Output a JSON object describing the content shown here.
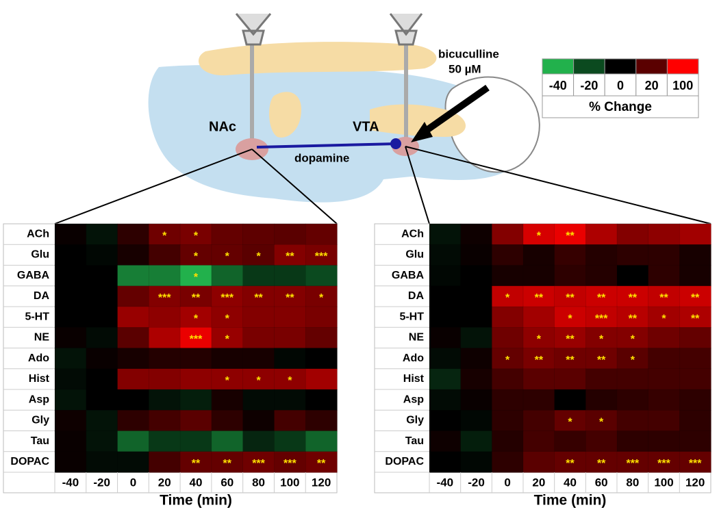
{
  "diagram": {
    "labels": [
      "NAc",
      "VTA",
      "dopamine",
      "bicuculline",
      "50 µM"
    ]
  },
  "legend": {
    "ticks": [
      -40,
      -20,
      0,
      20,
      100
    ],
    "colors": [
      "#22b14c",
      "#0b4a1f",
      "#000000",
      "#5a0000",
      "#ff0000"
    ],
    "title": "% Change"
  },
  "chart_data": [
    {
      "type": "heatmap",
      "xlabel": "Time (min)",
      "x": [
        -40,
        -20,
        0,
        20,
        40,
        60,
        80,
        100,
        120
      ],
      "rows": [
        "ACh",
        "Glu",
        "GABA",
        "DA",
        "5-HT",
        "NE",
        "Ado",
        "Hist",
        "Asp",
        "Gly",
        "Tau",
        "DOPAC"
      ],
      "values": [
        [
          2,
          -5,
          10,
          30,
          35,
          25,
          22,
          20,
          25
        ],
        [
          0,
          -2,
          5,
          15,
          25,
          25,
          20,
          40,
          35
        ],
        [
          0,
          0,
          -30,
          -30,
          -40,
          -25,
          -15,
          -15,
          -20
        ],
        [
          0,
          0,
          25,
          40,
          35,
          45,
          40,
          40,
          35
        ],
        [
          0,
          0,
          50,
          45,
          55,
          45,
          40,
          40,
          35
        ],
        [
          2,
          -3,
          20,
          60,
          90,
          50,
          35,
          35,
          25
        ],
        [
          -5,
          2,
          5,
          8,
          8,
          5,
          5,
          -2,
          0
        ],
        [
          -3,
          0,
          40,
          40,
          45,
          45,
          45,
          45,
          55
        ],
        [
          -5,
          0,
          0,
          -5,
          -8,
          5,
          -3,
          -3,
          0
        ],
        [
          3,
          -5,
          10,
          15,
          20,
          10,
          3,
          15,
          10
        ],
        [
          2,
          -5,
          -25,
          -15,
          -15,
          -25,
          -10,
          -15,
          -25
        ],
        [
          2,
          -3,
          -3,
          15,
          25,
          25,
          30,
          25,
          30
        ]
      ],
      "stars": [
        [
          null,
          null,
          null,
          "*",
          "*",
          null,
          null,
          null,
          null
        ],
        [
          null,
          null,
          null,
          null,
          "*",
          "*",
          "*",
          "**",
          "***"
        ],
        [
          null,
          null,
          null,
          null,
          "*",
          null,
          null,
          null,
          null
        ],
        [
          null,
          null,
          null,
          "***",
          "**",
          "***",
          "**",
          "**",
          "*"
        ],
        [
          null,
          null,
          null,
          null,
          "*",
          "*",
          null,
          null,
          null
        ],
        [
          null,
          null,
          null,
          null,
          "***",
          "*",
          null,
          null,
          null
        ],
        [
          null,
          null,
          null,
          null,
          null,
          null,
          null,
          null,
          null
        ],
        [
          null,
          null,
          null,
          null,
          null,
          "*",
          "*",
          "*",
          null
        ],
        [
          null,
          null,
          null,
          null,
          null,
          null,
          null,
          null,
          null
        ],
        [
          null,
          null,
          null,
          null,
          null,
          null,
          null,
          null,
          null
        ],
        [
          null,
          null,
          null,
          null,
          null,
          null,
          null,
          null,
          null
        ],
        [
          null,
          null,
          null,
          null,
          "**",
          "**",
          "***",
          "***",
          "**"
        ]
      ]
    },
    {
      "type": "heatmap",
      "xlabel": "Time (min)",
      "x": [
        -40,
        -20,
        0,
        20,
        40,
        60,
        80,
        100,
        120
      ],
      "rows": [
        "ACh",
        "Glu",
        "GABA",
        "DA",
        "5-HT",
        "NE",
        "Ado",
        "Hist",
        "Asp",
        "Gly",
        "Tau",
        "DOPAC"
      ],
      "values": [
        [
          -5,
          3,
          40,
          80,
          90,
          60,
          40,
          45,
          55
        ],
        [
          -3,
          2,
          10,
          5,
          12,
          8,
          10,
          10,
          5
        ],
        [
          -2,
          0,
          5,
          5,
          10,
          8,
          0,
          10,
          5
        ],
        [
          0,
          0,
          70,
          75,
          70,
          75,
          75,
          70,
          75
        ],
        [
          0,
          0,
          40,
          55,
          75,
          70,
          65,
          55,
          60
        ],
        [
          2,
          -5,
          30,
          45,
          50,
          40,
          40,
          30,
          25
        ],
        [
          -3,
          3,
          25,
          35,
          30,
          30,
          20,
          15,
          15
        ],
        [
          -10,
          5,
          15,
          20,
          20,
          15,
          15,
          15,
          15
        ],
        [
          -3,
          2,
          10,
          10,
          0,
          8,
          10,
          12,
          10
        ],
        [
          0,
          -2,
          10,
          15,
          25,
          20,
          15,
          15,
          10
        ],
        [
          3,
          -8,
          8,
          15,
          12,
          15,
          10,
          10,
          10
        ],
        [
          0,
          -2,
          10,
          20,
          25,
          25,
          25,
          25,
          25
        ]
      ],
      "stars": [
        [
          null,
          null,
          null,
          "*",
          "**",
          null,
          null,
          null,
          null
        ],
        [
          null,
          null,
          null,
          null,
          null,
          null,
          null,
          null,
          null
        ],
        [
          null,
          null,
          null,
          null,
          null,
          null,
          null,
          null,
          null
        ],
        [
          null,
          null,
          "*",
          "**",
          "**",
          "**",
          "**",
          "**",
          "**"
        ],
        [
          null,
          null,
          null,
          null,
          "*",
          "***",
          "**",
          "*",
          "**"
        ],
        [
          null,
          null,
          null,
          "*",
          "**",
          "*",
          "*",
          null,
          null
        ],
        [
          null,
          null,
          "*",
          "**",
          "**",
          "**",
          "*",
          null,
          null
        ],
        [
          null,
          null,
          null,
          null,
          null,
          null,
          null,
          null,
          null
        ],
        [
          null,
          null,
          null,
          null,
          null,
          null,
          null,
          null,
          null
        ],
        [
          null,
          null,
          null,
          null,
          "*",
          "*",
          null,
          null,
          null
        ],
        [
          null,
          null,
          null,
          null,
          null,
          null,
          null,
          null,
          null
        ],
        [
          null,
          null,
          null,
          null,
          "**",
          "**",
          "***",
          "***",
          "***"
        ]
      ]
    }
  ]
}
